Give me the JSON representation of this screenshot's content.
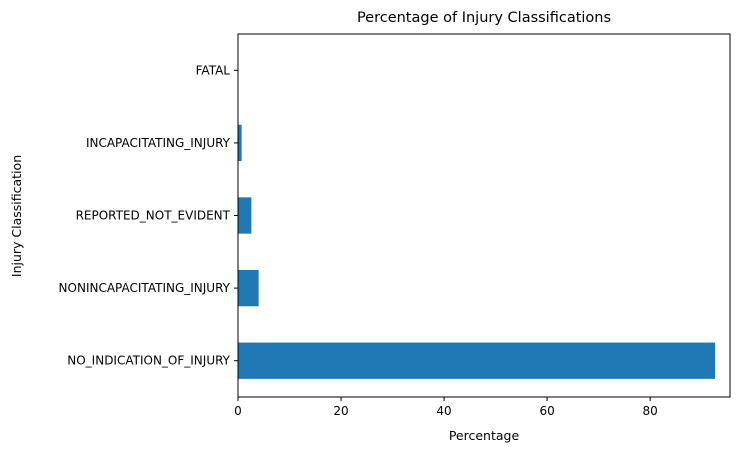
{
  "chart_data": {
    "type": "bar",
    "orientation": "horizontal",
    "title": "Percentage of Injury Classifications",
    "xlabel": "Percentage",
    "ylabel": "Injury Classification",
    "categories": [
      "NO_INDICATION_OF_INJURY",
      "NONINCAPACITATING_INJURY",
      "REPORTED_NOT_EVIDENT",
      "INCAPACITATING_INJURY",
      "FATAL"
    ],
    "values": [
      92.6,
      4.0,
      2.6,
      0.7,
      0.02
    ],
    "xlim": [
      0,
      95.5
    ],
    "xticks": [
      0,
      20,
      40,
      60,
      80
    ],
    "bar_color": "#1f77b4",
    "grid": false,
    "legend": "none"
  }
}
